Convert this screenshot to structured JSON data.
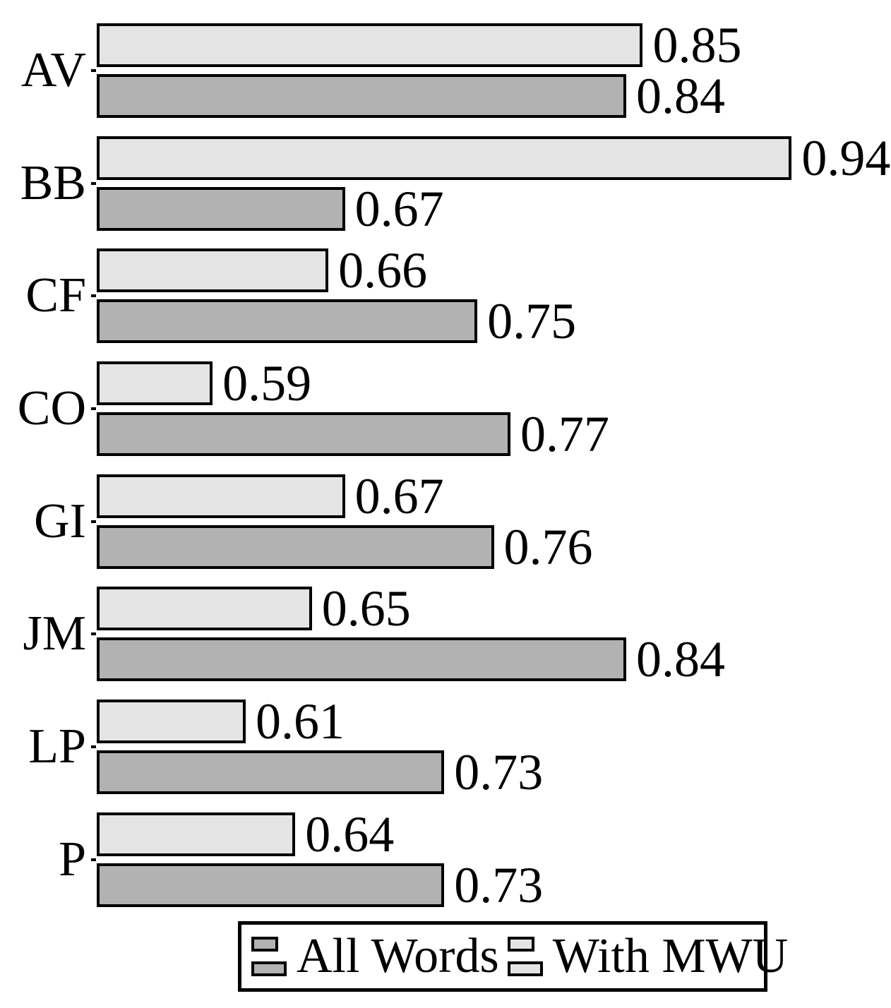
{
  "chart_data": {
    "type": "bar",
    "orientation": "horizontal",
    "title": "",
    "xlabel": "",
    "ylabel": "",
    "categories": [
      "AV",
      "BB",
      "CF",
      "CO",
      "GI",
      "JM",
      "LP",
      "P"
    ],
    "series": [
      {
        "name": "All Words",
        "color": "#b2b2b2",
        "position": "bottom",
        "values": [
          0.84,
          0.67,
          0.75,
          0.77,
          0.76,
          0.84,
          0.73,
          0.73
        ]
      },
      {
        "name": "With MWU",
        "color": "#e4e4e4",
        "position": "top",
        "values": [
          0.85,
          0.94,
          0.66,
          0.59,
          0.67,
          0.65,
          0.61,
          0.64
        ]
      }
    ],
    "xlim": [
      0.52,
      1.0
    ],
    "grid": false,
    "bar_border_color": "#000000",
    "value_labels_shown": true,
    "legend": {
      "position": "bottom",
      "entries": [
        {
          "label": "All Words",
          "color": "#b2b2b2"
        },
        {
          "label": "With MWU",
          "color": "#e4e4e4"
        }
      ]
    }
  }
}
